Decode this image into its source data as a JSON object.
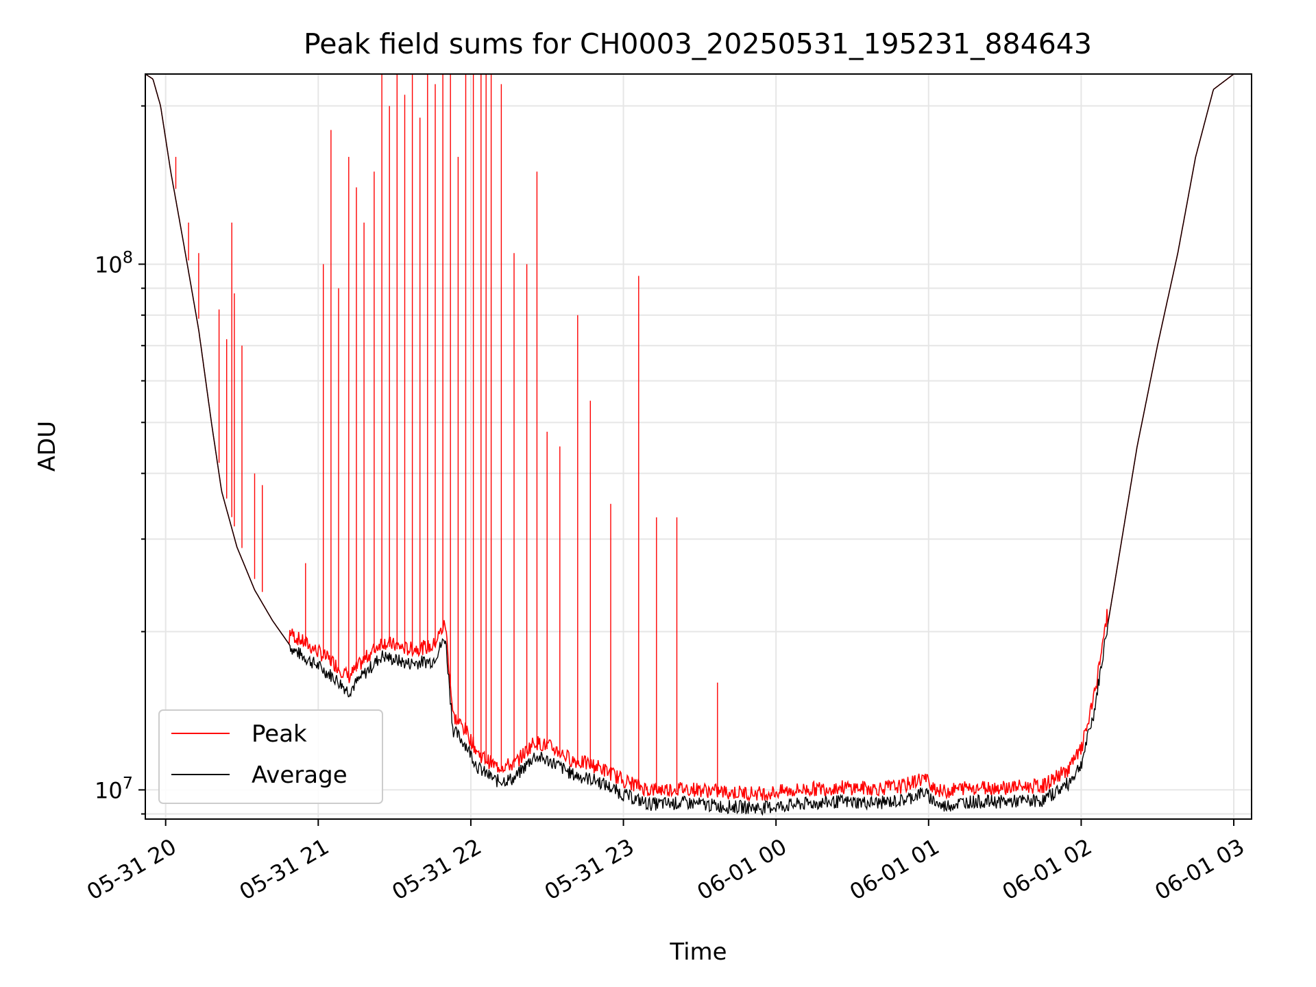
{
  "chart_data": {
    "type": "line",
    "title": "Peak field sums for CH0003_20250531_195231_884643",
    "xlabel": "Time",
    "ylabel": "ADU",
    "yscale": "log",
    "xlim": [
      "2025-05-31 19:52",
      "2025-06-01 03:07"
    ],
    "ylim": [
      8800000,
      230000000
    ],
    "grid": true,
    "legend_position": "lower-left",
    "x_ticks": [
      {
        "t": "2025-05-31 20:00",
        "label": "05-31 20"
      },
      {
        "t": "2025-05-31 21:00",
        "label": "05-31 21"
      },
      {
        "t": "2025-05-31 22:00",
        "label": "05-31 22"
      },
      {
        "t": "2025-05-31 23:00",
        "label": "05-31 23"
      },
      {
        "t": "2025-06-01 00:00",
        "label": "06-01 00"
      },
      {
        "t": "2025-06-01 01:00",
        "label": "06-01 01"
      },
      {
        "t": "2025-06-01 02:00",
        "label": "06-01 02"
      },
      {
        "t": "2025-06-01 03:00",
        "label": "06-01 03"
      }
    ],
    "y_ticks": [
      {
        "value": 10000000,
        "base": "10",
        "exp": "7"
      },
      {
        "value": 100000000,
        "base": "10",
        "exp": "8"
      }
    ],
    "series": [
      {
        "name": "Average",
        "color": "#000000",
        "points": [
          [
            "2025-05-31 19:52",
            230000000
          ],
          [
            "2025-05-31 19:55",
            225000000
          ],
          [
            "2025-05-31 19:58",
            200000000
          ],
          [
            "2025-05-31 20:02",
            150000000
          ],
          [
            "2025-05-31 20:07",
            110000000
          ],
          [
            "2025-05-31 20:13",
            75000000
          ],
          [
            "2025-05-31 20:18",
            50000000
          ],
          [
            "2025-05-31 20:22",
            37000000
          ],
          [
            "2025-05-31 20:28",
            29000000
          ],
          [
            "2025-05-31 20:35",
            24000000
          ],
          [
            "2025-05-31 20:42",
            21000000
          ],
          [
            "2025-05-31 20:50",
            18500000
          ],
          [
            "2025-05-31 21:00",
            17200000
          ],
          [
            "2025-05-31 21:06",
            16400000
          ],
          [
            "2025-05-31 21:12",
            15400000
          ],
          [
            "2025-05-31 21:18",
            16600000
          ],
          [
            "2025-05-31 21:25",
            18000000
          ],
          [
            "2025-05-31 21:35",
            17400000
          ],
          [
            "2025-05-31 21:45",
            17600000
          ],
          [
            "2025-05-31 21:50",
            19500000
          ],
          [
            "2025-05-31 21:53",
            13000000
          ],
          [
            "2025-05-31 21:58",
            12200000
          ],
          [
            "2025-05-31 22:03",
            11000000
          ],
          [
            "2025-05-31 22:10",
            10400000
          ],
          [
            "2025-05-31 22:17",
            10500000
          ],
          [
            "2025-05-31 22:25",
            11600000
          ],
          [
            "2025-05-31 22:32",
            11300000
          ],
          [
            "2025-05-31 22:40",
            10700000
          ],
          [
            "2025-05-31 22:50",
            10400000
          ],
          [
            "2025-05-31 23:00",
            9800000
          ],
          [
            "2025-05-31 23:10",
            9400000
          ],
          [
            "2025-05-31 23:25",
            9450000
          ],
          [
            "2025-05-31 23:40",
            9300000
          ],
          [
            "2025-05-31 23:55",
            9250000
          ],
          [
            "2025-06-01 00:10",
            9400000
          ],
          [
            "2025-06-01 00:25",
            9500000
          ],
          [
            "2025-06-01 00:40",
            9450000
          ],
          [
            "2025-06-01 00:50",
            9550000
          ],
          [
            "2025-06-01 00:58",
            9900000
          ],
          [
            "2025-06-01 01:05",
            9300000
          ],
          [
            "2025-06-01 01:15",
            9500000
          ],
          [
            "2025-06-01 01:30",
            9500000
          ],
          [
            "2025-06-01 01:45",
            9550000
          ],
          [
            "2025-06-01 01:55",
            10300000
          ],
          [
            "2025-06-01 02:00",
            11200000
          ],
          [
            "2025-06-01 02:05",
            14000000
          ],
          [
            "2025-06-01 02:10",
            20000000
          ],
          [
            "2025-06-01 02:16",
            30000000
          ],
          [
            "2025-06-01 02:22",
            45000000
          ],
          [
            "2025-06-01 02:30",
            70000000
          ],
          [
            "2025-06-01 02:38",
            105000000
          ],
          [
            "2025-06-01 02:45",
            160000000
          ],
          [
            "2025-06-01 02:52",
            215000000
          ],
          [
            "2025-06-01 03:00",
            230000000
          ],
          [
            "2025-06-01 03:07",
            230000000
          ]
        ]
      },
      {
        "name": "Peak",
        "color": "#ff0000",
        "spikes": [
          [
            "2025-05-31 20:04",
            160000000
          ],
          [
            "2025-05-31 20:09",
            120000000
          ],
          [
            "2025-05-31 20:13",
            105000000
          ],
          [
            "2025-05-31 20:21",
            82000000
          ],
          [
            "2025-05-31 20:24",
            72000000
          ],
          [
            "2025-05-31 20:26",
            120000000
          ],
          [
            "2025-05-31 20:27",
            88000000
          ],
          [
            "2025-05-31 20:30",
            70000000
          ],
          [
            "2025-05-31 20:35",
            40000000
          ],
          [
            "2025-05-31 20:38",
            38000000
          ],
          [
            "2025-05-31 20:55",
            27000000
          ],
          [
            "2025-05-31 21:02",
            100000000
          ],
          [
            "2025-05-31 21:05",
            180000000
          ],
          [
            "2025-05-31 21:08",
            90000000
          ],
          [
            "2025-05-31 21:12",
            160000000
          ],
          [
            "2025-05-31 21:15",
            140000000
          ],
          [
            "2025-05-31 21:18",
            120000000
          ],
          [
            "2025-05-31 21:22",
            150000000
          ],
          [
            "2025-05-31 21:25",
            230000000
          ],
          [
            "2025-05-31 21:28",
            200000000
          ],
          [
            "2025-05-31 21:31",
            230000000
          ],
          [
            "2025-05-31 21:34",
            210000000
          ],
          [
            "2025-05-31 21:37",
            230000000
          ],
          [
            "2025-05-31 21:40",
            190000000
          ],
          [
            "2025-05-31 21:43",
            230000000
          ],
          [
            "2025-05-31 21:46",
            220000000
          ],
          [
            "2025-05-31 21:49",
            230000000
          ],
          [
            "2025-05-31 21:52",
            230000000
          ],
          [
            "2025-05-31 21:55",
            160000000
          ],
          [
            "2025-05-31 21:58",
            230000000
          ],
          [
            "2025-05-31 22:01",
            230000000
          ],
          [
            "2025-05-31 22:04",
            230000000
          ],
          [
            "2025-05-31 22:06",
            230000000
          ],
          [
            "2025-05-31 22:08",
            230000000
          ],
          [
            "2025-05-31 22:12",
            220000000
          ],
          [
            "2025-05-31 22:17",
            105000000
          ],
          [
            "2025-05-31 22:22",
            100000000
          ],
          [
            "2025-05-31 22:26",
            150000000
          ],
          [
            "2025-05-31 22:30",
            48000000
          ],
          [
            "2025-05-31 22:35",
            45000000
          ],
          [
            "2025-05-31 22:42",
            80000000
          ],
          [
            "2025-05-31 22:47",
            55000000
          ],
          [
            "2025-05-31 22:55",
            35000000
          ],
          [
            "2025-05-31 23:06",
            95000000
          ],
          [
            "2025-05-31 23:13",
            33000000
          ],
          [
            "2025-05-31 23:21",
            33000000
          ],
          [
            "2025-05-31 23:37",
            16000000
          ]
        ]
      }
    ]
  },
  "legend": {
    "items": [
      {
        "label": "Peak",
        "color": "#ff0000"
      },
      {
        "label": "Average",
        "color": "#000000"
      }
    ]
  },
  "colors": {
    "grid": "#e6e6e6",
    "axes": "#000000"
  }
}
